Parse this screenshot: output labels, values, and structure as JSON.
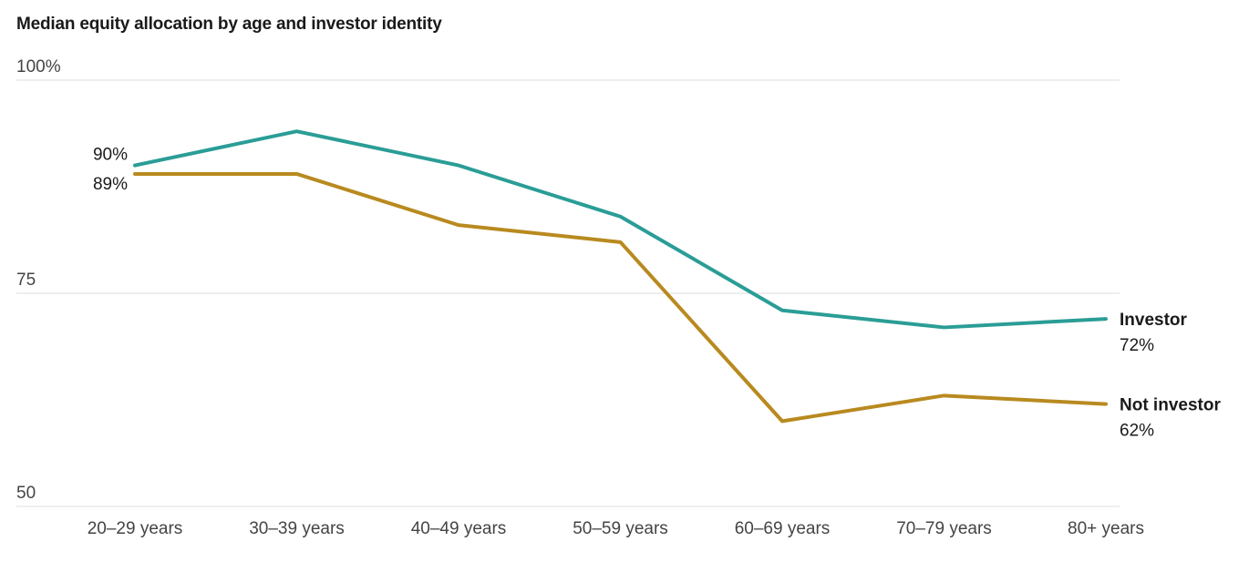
{
  "chart_data": {
    "type": "line",
    "title": "Median equity allocation by age and investor identity",
    "categories": [
      "20–29 years",
      "30–39 years",
      "40–49 years",
      "50–59 years",
      "60–69 years",
      "70–79 years",
      "80+ years"
    ],
    "ylim": [
      50,
      100
    ],
    "yticks": [
      {
        "value": 100,
        "label": "100%"
      },
      {
        "value": 75,
        "label": "75"
      },
      {
        "value": 50,
        "label": "50"
      }
    ],
    "grid": true,
    "series": [
      {
        "name": "Investor",
        "color": "#2a9d96",
        "values": [
          90,
          94,
          90,
          84,
          73,
          71,
          72
        ],
        "start_label": "90%",
        "end_label": "72%"
      },
      {
        "name": "Not investor",
        "color": "#b88a1f",
        "values": [
          89,
          89,
          83,
          81,
          60,
          63,
          62
        ],
        "start_label": "89%",
        "end_label": "62%"
      }
    ]
  }
}
